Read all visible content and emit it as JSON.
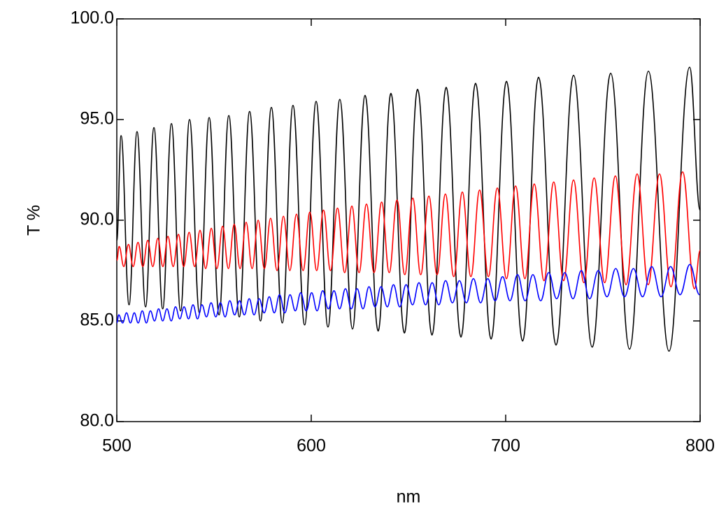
{
  "chart_data": {
    "type": "line",
    "xlabel": "nm",
    "ylabel": "T %",
    "xlim": [
      500,
      800
    ],
    "xticks": [
      500,
      600,
      700,
      800
    ],
    "ylim": [
      80,
      100
    ],
    "yticks": [
      {
        "value": 80,
        "label": "80.0"
      },
      {
        "value": 85,
        "label": "85.0"
      },
      {
        "value": 90,
        "label": "90.0"
      },
      {
        "value": 95,
        "label": "95.0"
      },
      {
        "value": 100,
        "label": "100.0"
      }
    ],
    "series": [
      {
        "color": "#000000",
        "x": [
          500,
          502.2,
          506.3,
          510.4,
          514.8,
          519.1,
          523.6,
          528.1,
          532.8,
          537.4,
          542.5,
          547.5,
          552.6,
          557.6,
          563.0,
          568.3,
          573.9,
          579.5,
          585.1,
          590.6,
          596.6,
          602.5,
          608.6,
          614.7,
          621.2,
          627.7,
          634.4,
          641.0,
          647.9,
          654.7,
          662.1,
          669.4,
          677.0,
          684.5,
          692.5,
          700.4,
          708.7,
          716.9,
          725.9,
          734.9,
          744.5,
          754.0,
          763.7,
          773.4,
          784.0,
          794.6,
          800
        ],
        "values": [
          89.0,
          94.2,
          85.8,
          94.4,
          85.7,
          94.6,
          85.6,
          94.8,
          85.5,
          95.0,
          85.4,
          95.1,
          85.3,
          95.2,
          85.2,
          95.4,
          85.0,
          95.6,
          84.9,
          95.7,
          84.8,
          95.9,
          84.7,
          96.0,
          84.6,
          96.2,
          84.5,
          96.3,
          84.4,
          96.5,
          84.3,
          96.6,
          84.2,
          96.8,
          84.1,
          96.9,
          84.0,
          97.1,
          83.8,
          97.2,
          83.7,
          97.3,
          83.6,
          97.4,
          83.5,
          97.6,
          90.5
        ]
      },
      {
        "color": "#ff0000",
        "x": [
          500,
          501.2,
          503.6,
          506.0,
          508.4,
          510.9,
          513.4,
          515.9,
          518.5,
          521.1,
          523.7,
          526.3,
          529.0,
          531.7,
          534.4,
          537.2,
          540.0,
          542.8,
          545.7,
          548.6,
          551.5,
          554.4,
          557.4,
          560.4,
          563.4,
          566.5,
          569.6,
          572.7,
          575.9,
          579.1,
          582.4,
          585.7,
          589.0,
          592.4,
          595.8,
          599.3,
          602.8,
          606.3,
          609.9,
          613.5,
          617.2,
          620.9,
          624.6,
          628.4,
          632.3,
          636.2,
          640.1,
          644.1,
          648.1,
          652.2,
          656.3,
          660.5,
          664.7,
          669.0,
          673.3,
          677.7,
          682.1,
          686.6,
          691.1,
          695.7,
          700.4,
          705.1,
          709.9,
          714.7,
          719.7,
          724.7,
          729.8,
          734.9,
          740.2,
          745.5,
          750.9,
          756.4,
          761.9,
          767.6,
          773.3,
          779.1,
          785.0,
          791.0,
          797.1,
          800
        ],
        "values": [
          88.0,
          88.7,
          87.7,
          88.8,
          87.7,
          88.9,
          87.7,
          89.0,
          87.7,
          89.1,
          87.7,
          89.2,
          87.7,
          89.3,
          87.7,
          89.4,
          87.7,
          89.5,
          87.6,
          89.6,
          87.6,
          89.7,
          87.6,
          89.8,
          87.6,
          89.9,
          87.6,
          90.0,
          87.6,
          90.1,
          87.5,
          90.2,
          87.5,
          90.3,
          87.5,
          90.4,
          87.5,
          90.5,
          87.5,
          90.6,
          87.4,
          90.7,
          87.4,
          90.8,
          87.4,
          90.9,
          87.4,
          91.0,
          87.3,
          91.1,
          87.3,
          91.2,
          87.3,
          91.3,
          87.2,
          91.4,
          87.2,
          91.5,
          87.2,
          91.6,
          87.1,
          91.7,
          87.1,
          91.8,
          87.0,
          91.9,
          87.0,
          92.0,
          86.9,
          92.1,
          86.9,
          92.2,
          86.8,
          92.3,
          86.8,
          92.3,
          86.7,
          92.4,
          86.6,
          88.5
        ]
      },
      {
        "color": "#0000ff",
        "x": [
          500,
          501.0,
          503.0,
          505.0,
          507.0,
          509.0,
          511.0,
          513.1,
          515.2,
          517.3,
          519.4,
          521.5,
          523.6,
          525.8,
          528.0,
          530.2,
          532.4,
          534.6,
          536.9,
          539.2,
          541.5,
          543.8,
          546.1,
          548.5,
          550.9,
          553.3,
          555.7,
          558.1,
          560.6,
          563.1,
          565.6,
          568.1,
          570.6,
          573.2,
          575.8,
          578.4,
          581.0,
          583.7,
          586.4,
          589.1,
          591.8,
          594.6,
          597.4,
          600.2,
          603.0,
          605.9,
          608.8,
          611.7,
          614.6,
          617.6,
          620.6,
          623.6,
          626.6,
          629.7,
          632.8,
          635.9,
          639.1,
          642.3,
          645.5,
          648.8,
          652.1,
          655.4,
          658.8,
          662.2,
          665.6,
          669.1,
          672.6,
          676.2,
          679.8,
          683.4,
          687.1,
          690.8,
          694.6,
          698.4,
          702.2,
          706.1,
          710.0,
          714.0,
          718.0,
          722.1,
          726.2,
          730.4,
          734.6,
          738.9,
          743.2,
          747.6,
          752.1,
          756.6,
          761.1,
          765.7,
          770.4,
          775.1,
          779.9,
          784.8,
          789.7,
          794.7,
          799.7
        ],
        "values": [
          84.9,
          85.3,
          84.9,
          85.4,
          84.9,
          85.4,
          84.9,
          85.5,
          84.9,
          85.5,
          85.0,
          85.6,
          85.0,
          85.6,
          85.0,
          85.7,
          85.1,
          85.7,
          85.1,
          85.8,
          85.1,
          85.8,
          85.2,
          85.9,
          85.2,
          85.9,
          85.2,
          86.0,
          85.3,
          86.0,
          85.3,
          86.1,
          85.3,
          86.1,
          85.4,
          86.2,
          85.4,
          86.3,
          85.4,
          86.3,
          85.5,
          86.4,
          85.5,
          86.4,
          85.5,
          86.5,
          85.6,
          86.5,
          85.6,
          86.6,
          85.6,
          86.6,
          85.6,
          86.7,
          85.7,
          86.7,
          85.7,
          86.8,
          85.7,
          86.8,
          85.8,
          86.9,
          85.8,
          86.9,
          85.8,
          87.0,
          85.9,
          87.0,
          85.9,
          87.1,
          85.9,
          87.1,
          86.0,
          87.2,
          86.0,
          87.3,
          86.0,
          87.3,
          86.0,
          87.4,
          86.1,
          87.4,
          86.1,
          87.5,
          86.1,
          87.5,
          86.2,
          87.6,
          86.2,
          87.6,
          86.2,
          87.7,
          86.2,
          87.7,
          86.3,
          87.8,
          86.3
        ]
      }
    ]
  }
}
